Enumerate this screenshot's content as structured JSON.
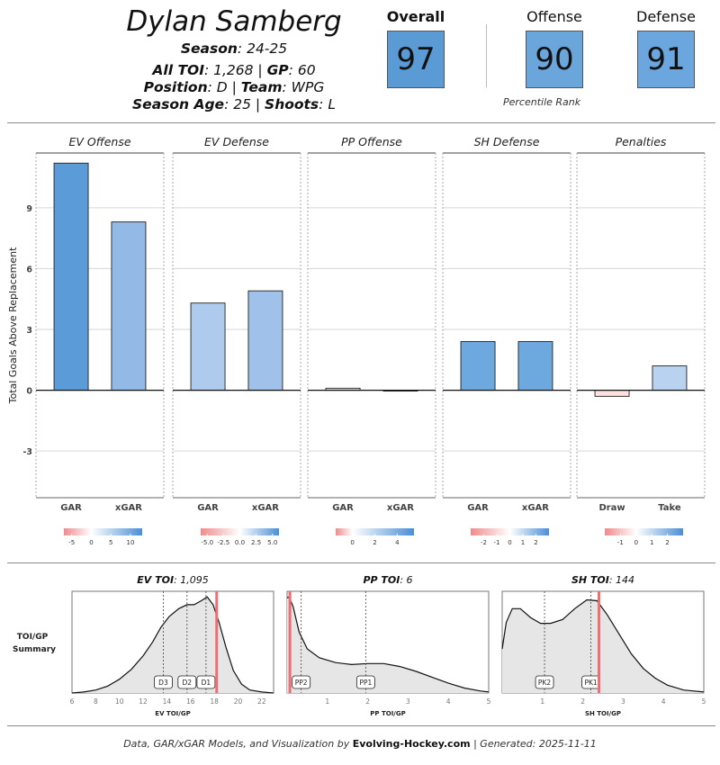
{
  "player": {
    "name": "Dylan Samberg",
    "season_label": "Season",
    "season": "24-25",
    "toi_label": "All TOI",
    "toi": "1,268",
    "gp_label": "GP",
    "gp": "60",
    "position_label": "Position",
    "position": "D",
    "team_label": "Team",
    "team": "WPG",
    "age_label": "Season Age",
    "age": "25",
    "shoots_label": "Shoots",
    "shoots": "L"
  },
  "percentiles": {
    "overall_label": "Overall",
    "overall": "97",
    "offense_label": "Offense",
    "offense": "90",
    "defense_label": "Defense",
    "defense": "91",
    "note": "Percentile Rank",
    "box_colors": {
      "overall": "#5b9bd5",
      "offense": "#6aa5dc",
      "defense": "#6ba6de"
    }
  },
  "chart_data": [
    {
      "type": "bar",
      "ylabel": "Total Goals Above Replacement",
      "ylim": [
        -5.3,
        11.7
      ],
      "yticks": [
        -3,
        0,
        3,
        6,
        9
      ],
      "panels": [
        {
          "title": "EV Offense",
          "categories": [
            "GAR",
            "xGAR"
          ],
          "values": [
            11.2,
            8.3
          ],
          "colors": [
            "#5b9bd8",
            "#93b9e6"
          ],
          "legend_ticks": [
            "-5",
            "0",
            "5",
            "10"
          ],
          "legend_range": [
            -7,
            13
          ]
        },
        {
          "title": "EV Defense",
          "categories": [
            "GAR",
            "xGAR"
          ],
          "values": [
            4.3,
            4.9
          ],
          "colors": [
            "#aecbee",
            "#9fc1ea"
          ],
          "legend_ticks": [
            "-5.0",
            "-2.5",
            "0.0",
            "2.5",
            "5.0"
          ],
          "legend_range": [
            -6,
            6
          ]
        },
        {
          "title": "PP Offense",
          "categories": [
            "GAR",
            "xGAR"
          ],
          "values": [
            0.1,
            0.0
          ],
          "colors": [
            "#e0e0e0",
            "#d9d9d9"
          ],
          "legend_ticks": [
            "0",
            "2",
            "4"
          ],
          "legend_range": [
            -1.5,
            5.5
          ]
        },
        {
          "title": "SH Defense",
          "categories": [
            "GAR",
            "xGAR"
          ],
          "values": [
            2.4,
            2.4
          ],
          "colors": [
            "#6da8de",
            "#6da8de"
          ],
          "legend_ticks": [
            "-2",
            "-1",
            "0",
            "1",
            "2"
          ],
          "legend_range": [
            -3,
            3
          ]
        },
        {
          "title": "Penalties",
          "categories": [
            "Draw",
            "Take"
          ],
          "values": [
            -0.3,
            1.2
          ],
          "colors": [
            "#fde0df",
            "#b8d2f0"
          ],
          "legend_ticks": [
            "-1",
            "0",
            "1",
            "2"
          ],
          "legend_range": [
            -2,
            3
          ]
        }
      ]
    },
    {
      "type": "area",
      "side_label_1": "TOI/GP",
      "side_label_2": "Summary",
      "panels": [
        {
          "title_label": "EV TOI",
          "title_value": "1,095",
          "xlabel": "EV TOI/GP",
          "xlim": [
            6,
            23
          ],
          "xticks": [
            6,
            8,
            10,
            12,
            14,
            16,
            18,
            20,
            22
          ],
          "player_value": 18.2,
          "markers": [
            {
              "label": "D3",
              "x": 13.7
            },
            {
              "label": "D2",
              "x": 15.7
            },
            {
              "label": "D1",
              "x": 17.3
            }
          ],
          "density": [
            [
              6,
              0.0
            ],
            [
              7,
              0.01
            ],
            [
              8,
              0.03
            ],
            [
              9,
              0.07
            ],
            [
              10,
              0.14
            ],
            [
              11,
              0.24
            ],
            [
              12,
              0.38
            ],
            [
              12.8,
              0.52
            ],
            [
              13.5,
              0.67
            ],
            [
              14.2,
              0.78
            ],
            [
              15,
              0.86
            ],
            [
              15.7,
              0.9
            ],
            [
              16.3,
              0.9
            ],
            [
              16.9,
              0.94
            ],
            [
              17.4,
              0.98
            ],
            [
              17.9,
              0.9
            ],
            [
              18.4,
              0.72
            ],
            [
              19,
              0.46
            ],
            [
              19.6,
              0.23
            ],
            [
              20.3,
              0.09
            ],
            [
              21,
              0.03
            ],
            [
              22,
              0.01
            ],
            [
              23,
              0.0
            ]
          ]
        },
        {
          "title_label": "PP TOI",
          "title_value": "6",
          "xlabel": "PP TOI/GP",
          "xlim": [
            0,
            5
          ],
          "xticks": [
            1,
            2,
            3,
            4,
            5
          ],
          "player_value": 0.07,
          "markers": [
            {
              "label": "PP2",
              "x": 0.35
            },
            {
              "label": "PP1",
              "x": 1.95
            }
          ],
          "density": [
            [
              0,
              0.97
            ],
            [
              0.05,
              0.98
            ],
            [
              0.15,
              0.88
            ],
            [
              0.3,
              0.62
            ],
            [
              0.5,
              0.45
            ],
            [
              0.8,
              0.36
            ],
            [
              1.2,
              0.31
            ],
            [
              1.6,
              0.29
            ],
            [
              2.0,
              0.3
            ],
            [
              2.4,
              0.3
            ],
            [
              2.8,
              0.27
            ],
            [
              3.2,
              0.22
            ],
            [
              3.6,
              0.16
            ],
            [
              4.0,
              0.1
            ],
            [
              4.4,
              0.05
            ],
            [
              4.8,
              0.02
            ],
            [
              5.0,
              0.01
            ]
          ]
        },
        {
          "title_label": "SH TOI",
          "title_value": "144",
          "xlabel": "SH TOI/GP",
          "xlim": [
            0,
            5
          ],
          "xticks": [
            1,
            2,
            3,
            4,
            5
          ],
          "player_value": 2.4,
          "markers": [
            {
              "label": "PK2",
              "x": 1.05
            },
            {
              "label": "PK1",
              "x": 2.2
            }
          ],
          "density": [
            [
              0,
              0.45
            ],
            [
              0.1,
              0.72
            ],
            [
              0.25,
              0.86
            ],
            [
              0.45,
              0.86
            ],
            [
              0.7,
              0.77
            ],
            [
              0.95,
              0.71
            ],
            [
              1.2,
              0.71
            ],
            [
              1.5,
              0.75
            ],
            [
              1.8,
              0.86
            ],
            [
              2.1,
              0.95
            ],
            [
              2.35,
              0.94
            ],
            [
              2.6,
              0.8
            ],
            [
              2.9,
              0.6
            ],
            [
              3.2,
              0.4
            ],
            [
              3.5,
              0.25
            ],
            [
              3.8,
              0.15
            ],
            [
              4.1,
              0.08
            ],
            [
              4.5,
              0.03
            ],
            [
              5.0,
              0.01
            ]
          ]
        }
      ]
    }
  ],
  "footer": {
    "prefix": "Data, GAR/xGAR Models, and Visualization by",
    "brand": "Evolving-Hockey.com",
    "suffix": "| Generated: 2025-11-11"
  }
}
